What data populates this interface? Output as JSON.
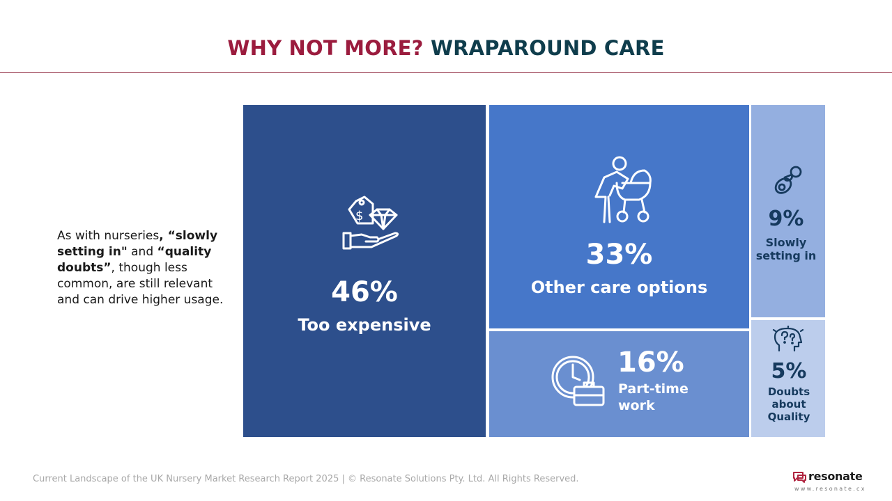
{
  "title": {
    "part1": "WHY NOT MORE?",
    "part2": "WRAPAROUND CARE"
  },
  "description": {
    "p1": "As with nurseries",
    "b1": ", “slowly setting in\"",
    "p2": " and ",
    "b2": "“quality doubts”",
    "p3": ", though less common, are still relevant and can drive higher usage."
  },
  "chart_data": {
    "type": "treemap",
    "items": [
      {
        "label": "Too expensive",
        "value": 46,
        "display": "46%",
        "color": "#2d4f8c",
        "icon": "price-tag-diamond-hand-icon"
      },
      {
        "label": "Other care options",
        "value": 33,
        "display": "33%",
        "color": "#4677c9",
        "icon": "person-with-pram-icon"
      },
      {
        "label": "Part-time work",
        "value": 16,
        "display": "16%",
        "color": "#6a8fd0",
        "icon": "clock-briefcase-icon"
      },
      {
        "label": "Slowly setting in",
        "value": 9,
        "display": "9%",
        "color": "#94afe0",
        "icon": "pacifier-icon"
      },
      {
        "label": "Doubts about Quality",
        "value": 5,
        "display": "5%",
        "color": "#bccdec",
        "icon": "head-question-marks-icon"
      }
    ]
  },
  "tile_labels": {
    "slowly_line1": "Slowly",
    "slowly_line2": "setting in",
    "doubts_line1": "Doubts",
    "doubts_line2": "about",
    "doubts_line3": "Quality",
    "parttime_line1": "Part-time",
    "parttime_line2": "work"
  },
  "footer": {
    "text": "Current Landscape of the UK Nursery Market Research Report 2025 | © Resonate Solutions Pty. Ltd. All Rights Reserved.",
    "logo_word": "resonate",
    "logo_url": "www.resonate.cx",
    "brand_color": "#b0243f"
  }
}
